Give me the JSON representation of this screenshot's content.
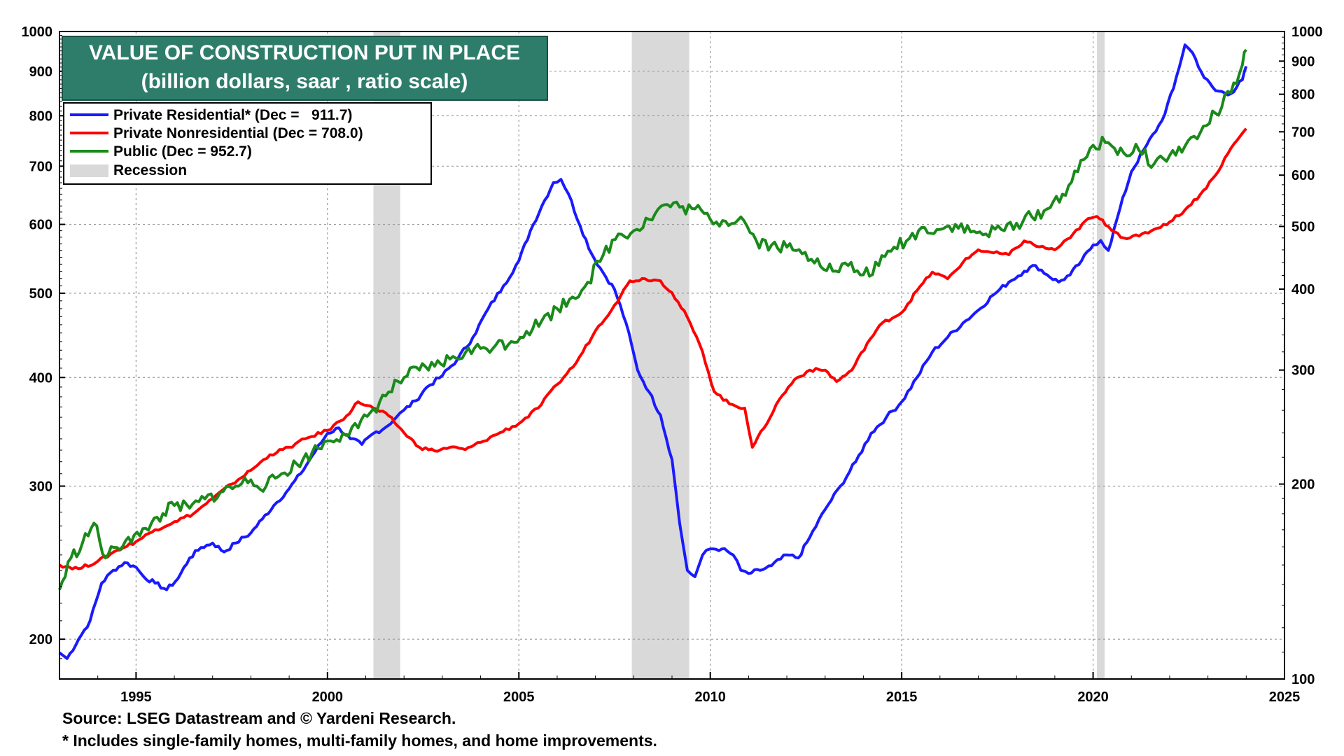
{
  "chart_data": {
    "type": "line",
    "title": "VALUE OF CONSTRUCTION PUT IN PLACE",
    "subtitle": "(billion dollars, saar , ratio scale)",
    "x_range": [
      1993,
      2025
    ],
    "x_ticks": [
      1995,
      2000,
      2005,
      2010,
      2015,
      2020,
      2025
    ],
    "left_axis": {
      "scale": "log",
      "range": [
        180,
        1000
      ],
      "ticks": [
        200,
        300,
        400,
        500,
        600,
        700,
        800,
        900,
        1000
      ]
    },
    "right_axis": {
      "scale": "log",
      "range": [
        100,
        1000
      ],
      "ticks": [
        100,
        200,
        300,
        400,
        500,
        600,
        700,
        800,
        900,
        1000
      ]
    },
    "legend": {
      "placement": "top-left",
      "entries": [
        {
          "label": "Private Residential* (Dec =   911.7)",
          "color": "#1a1aff"
        },
        {
          "label": "Private Nonresidential (Dec = 708.0)",
          "color": "#ff0000"
        },
        {
          "label": "Public (Dec = 952.7)",
          "color": "#1a8a1a"
        },
        {
          "label": "Recession",
          "color": "#d9d9d9"
        }
      ]
    },
    "recessions": [
      [
        2001.2,
        2001.9
      ],
      [
        2007.95,
        2009.45
      ],
      [
        2020.1,
        2020.3
      ]
    ],
    "series": [
      {
        "name": "Private Residential",
        "axis": "left",
        "color": "#1a1aff",
        "points": [
          [
            1993.0,
            193
          ],
          [
            1993.2,
            190
          ],
          [
            1993.5,
            200
          ],
          [
            1993.8,
            210
          ],
          [
            1994.1,
            232
          ],
          [
            1994.4,
            240
          ],
          [
            1994.7,
            245
          ],
          [
            1995.0,
            242
          ],
          [
            1995.2,
            236
          ],
          [
            1995.5,
            232
          ],
          [
            1995.8,
            228
          ],
          [
            1996.1,
            235
          ],
          [
            1996.4,
            248
          ],
          [
            1996.7,
            255
          ],
          [
            1997.0,
            258
          ],
          [
            1997.3,
            252
          ],
          [
            1997.6,
            258
          ],
          [
            1998.0,
            265
          ],
          [
            1998.3,
            275
          ],
          [
            1998.6,
            285
          ],
          [
            1999.0,
            298
          ],
          [
            1999.3,
            310
          ],
          [
            1999.6,
            325
          ],
          [
            2000.0,
            345
          ],
          [
            2000.3,
            350
          ],
          [
            2000.6,
            340
          ],
          [
            2000.9,
            335
          ],
          [
            2001.2,
            345
          ],
          [
            2001.5,
            350
          ],
          [
            2001.8,
            360
          ],
          [
            2002.0,
            367
          ],
          [
            2002.3,
            376
          ],
          [
            2002.6,
            390
          ],
          [
            2003.0,
            402
          ],
          [
            2003.4,
            420
          ],
          [
            2003.8,
            445
          ],
          [
            2004.2,
            480
          ],
          [
            2004.6,
            510
          ],
          [
            2005.0,
            545
          ],
          [
            2005.3,
            590
          ],
          [
            2005.6,
            630
          ],
          [
            2005.9,
            670
          ],
          [
            2006.1,
            676
          ],
          [
            2006.3,
            650
          ],
          [
            2006.6,
            598
          ],
          [
            2006.9,
            555
          ],
          [
            2007.2,
            528
          ],
          [
            2007.5,
            505
          ],
          [
            2007.8,
            462
          ],
          [
            2008.1,
            408
          ],
          [
            2008.4,
            385
          ],
          [
            2008.7,
            362
          ],
          [
            2009.0,
            322
          ],
          [
            2009.2,
            272
          ],
          [
            2009.4,
            240
          ],
          [
            2009.6,
            236
          ],
          [
            2009.8,
            250
          ],
          [
            2010.0,
            254
          ],
          [
            2010.3,
            254
          ],
          [
            2010.6,
            250
          ],
          [
            2010.8,
            240
          ],
          [
            2011.0,
            238
          ],
          [
            2011.3,
            240
          ],
          [
            2011.6,
            243
          ],
          [
            2012.0,
            250
          ],
          [
            2012.3,
            248
          ],
          [
            2012.6,
            262
          ],
          [
            2013.0,
            282
          ],
          [
            2013.4,
            300
          ],
          [
            2013.8,
            320
          ],
          [
            2014.2,
            345
          ],
          [
            2014.6,
            360
          ],
          [
            2015.0,
            375
          ],
          [
            2015.4,
            400
          ],
          [
            2015.8,
            428
          ],
          [
            2016.2,
            445
          ],
          [
            2016.6,
            462
          ],
          [
            2017.0,
            478
          ],
          [
            2017.4,
            498
          ],
          [
            2017.8,
            515
          ],
          [
            2018.2,
            530
          ],
          [
            2018.5,
            538
          ],
          [
            2018.8,
            525
          ],
          [
            2019.1,
            515
          ],
          [
            2019.4,
            525
          ],
          [
            2019.7,
            545
          ],
          [
            2020.0,
            568
          ],
          [
            2020.2,
            575
          ],
          [
            2020.4,
            560
          ],
          [
            2020.7,
            625
          ],
          [
            2021.0,
            690
          ],
          [
            2021.4,
            740
          ],
          [
            2021.8,
            790
          ],
          [
            2022.1,
            860
          ],
          [
            2022.4,
            965
          ],
          [
            2022.6,
            945
          ],
          [
            2022.9,
            885
          ],
          [
            2023.2,
            855
          ],
          [
            2023.6,
            848
          ],
          [
            2023.9,
            880
          ],
          [
            2024.0,
            912
          ]
        ]
      },
      {
        "name": "Private Nonresidential",
        "axis": "right",
        "color": "#ff0000",
        "points": [
          [
            1993.0,
            150
          ],
          [
            1993.5,
            148
          ],
          [
            1994.0,
            152
          ],
          [
            1994.5,
            158
          ],
          [
            1995.0,
            163
          ],
          [
            1995.5,
            170
          ],
          [
            1996.0,
            175
          ],
          [
            1996.5,
            180
          ],
          [
            1997.0,
            190
          ],
          [
            1997.5,
            200
          ],
          [
            1998.0,
            210
          ],
          [
            1998.5,
            222
          ],
          [
            1999.0,
            228
          ],
          [
            1999.5,
            236
          ],
          [
            2000.0,
            242
          ],
          [
            2000.5,
            255
          ],
          [
            2000.8,
            268
          ],
          [
            2001.2,
            262
          ],
          [
            2001.6,
            255
          ],
          [
            2002.0,
            240
          ],
          [
            2002.4,
            228
          ],
          [
            2002.8,
            225
          ],
          [
            2003.2,
            228
          ],
          [
            2003.6,
            226
          ],
          [
            2004.0,
            232
          ],
          [
            2004.5,
            240
          ],
          [
            2005.0,
            248
          ],
          [
            2005.5,
            262
          ],
          [
            2006.0,
            285
          ],
          [
            2006.5,
            308
          ],
          [
            2007.0,
            345
          ],
          [
            2007.5,
            378
          ],
          [
            2007.9,
            412
          ],
          [
            2008.3,
            415
          ],
          [
            2008.7,
            412
          ],
          [
            2009.0,
            395
          ],
          [
            2009.4,
            362
          ],
          [
            2009.8,
            320
          ],
          [
            2010.1,
            278
          ],
          [
            2010.5,
            266
          ],
          [
            2010.9,
            262
          ],
          [
            2011.1,
            228
          ],
          [
            2011.4,
            244
          ],
          [
            2011.8,
            270
          ],
          [
            2012.2,
            290
          ],
          [
            2012.6,
            300
          ],
          [
            2013.0,
            300
          ],
          [
            2013.3,
            288
          ],
          [
            2013.7,
            300
          ],
          [
            2014.1,
            330
          ],
          [
            2014.5,
            355
          ],
          [
            2015.0,
            368
          ],
          [
            2015.4,
            398
          ],
          [
            2015.8,
            425
          ],
          [
            2016.2,
            415
          ],
          [
            2016.6,
            440
          ],
          [
            2017.0,
            460
          ],
          [
            2017.4,
            455
          ],
          [
            2017.8,
            452
          ],
          [
            2018.2,
            475
          ],
          [
            2018.6,
            465
          ],
          [
            2019.0,
            460
          ],
          [
            2019.4,
            480
          ],
          [
            2019.8,
            510
          ],
          [
            2020.1,
            518
          ],
          [
            2020.4,
            500
          ],
          [
            2020.8,
            480
          ],
          [
            2021.2,
            483
          ],
          [
            2021.6,
            495
          ],
          [
            2022.0,
            508
          ],
          [
            2022.4,
            530
          ],
          [
            2022.8,
            560
          ],
          [
            2023.2,
            600
          ],
          [
            2023.6,
            660
          ],
          [
            2024.0,
            708
          ]
        ]
      },
      {
        "name": "Public",
        "axis": "left",
        "color": "#1a8a1a",
        "points": [
          [
            1993.0,
            228
          ],
          [
            1993.3,
            248
          ],
          [
            1993.6,
            258
          ],
          [
            1993.9,
            272
          ],
          [
            1994.2,
            248
          ],
          [
            1994.5,
            255
          ],
          [
            1994.8,
            262
          ],
          [
            1995.1,
            263
          ],
          [
            1995.4,
            272
          ],
          [
            1995.7,
            279
          ],
          [
            1996.0,
            285
          ],
          [
            1996.4,
            283
          ],
          [
            1996.8,
            290
          ],
          [
            1997.2,
            295
          ],
          [
            1997.6,
            300
          ],
          [
            1998.0,
            305
          ],
          [
            1998.4,
            300
          ],
          [
            1998.8,
            310
          ],
          [
            1999.2,
            318
          ],
          [
            1999.6,
            328
          ],
          [
            2000.0,
            338
          ],
          [
            2000.4,
            345
          ],
          [
            2000.8,
            350
          ],
          [
            2001.2,
            368
          ],
          [
            2001.6,
            385
          ],
          [
            2002.0,
            400
          ],
          [
            2002.4,
            408
          ],
          [
            2002.8,
            412
          ],
          [
            2003.2,
            420
          ],
          [
            2003.6,
            427
          ],
          [
            2004.0,
            432
          ],
          [
            2004.4,
            436
          ],
          [
            2004.8,
            440
          ],
          [
            2005.2,
            452
          ],
          [
            2005.6,
            465
          ],
          [
            2006.0,
            480
          ],
          [
            2006.4,
            495
          ],
          [
            2006.8,
            515
          ],
          [
            2007.2,
            553
          ],
          [
            2007.6,
            585
          ],
          [
            2008.0,
            590
          ],
          [
            2008.4,
            608
          ],
          [
            2008.8,
            632
          ],
          [
            2009.2,
            628
          ],
          [
            2009.6,
            625
          ],
          [
            2010.0,
            608
          ],
          [
            2010.4,
            605
          ],
          [
            2010.8,
            612
          ],
          [
            2011.2,
            575
          ],
          [
            2011.6,
            568
          ],
          [
            2012.0,
            565
          ],
          [
            2012.4,
            555
          ],
          [
            2012.8,
            548
          ],
          [
            2013.2,
            530
          ],
          [
            2013.6,
            538
          ],
          [
            2014.0,
            525
          ],
          [
            2014.4,
            538
          ],
          [
            2014.8,
            565
          ],
          [
            2015.2,
            578
          ],
          [
            2015.6,
            595
          ],
          [
            2016.0,
            592
          ],
          [
            2016.4,
            600
          ],
          [
            2016.8,
            588
          ],
          [
            2017.2,
            585
          ],
          [
            2017.6,
            592
          ],
          [
            2018.0,
            602
          ],
          [
            2018.4,
            612
          ],
          [
            2018.8,
            625
          ],
          [
            2019.2,
            650
          ],
          [
            2019.6,
            690
          ],
          [
            2020.0,
            740
          ],
          [
            2020.4,
            745
          ],
          [
            2020.8,
            725
          ],
          [
            2021.2,
            730
          ],
          [
            2021.6,
            705
          ],
          [
            2022.0,
            720
          ],
          [
            2022.4,
            738
          ],
          [
            2022.8,
            765
          ],
          [
            2023.2,
            805
          ],
          [
            2023.6,
            850
          ],
          [
            2023.9,
            915
          ],
          [
            2024.0,
            953
          ]
        ]
      }
    ],
    "notes": [
      "Source: LSEG Datastream and © Yardeni Research.",
      "* Includes single-family homes, multi-family homes, and home improvements."
    ]
  }
}
